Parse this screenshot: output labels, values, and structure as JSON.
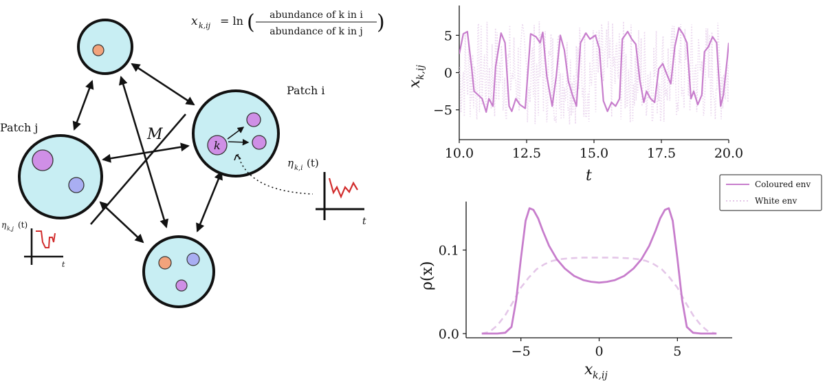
{
  "diagram": {
    "formula": {
      "lhs": "x",
      "lhs_sub": "k,ij",
      "eq_ln": "= ln",
      "numerator": "abundance of k in i",
      "denominator": "abundance of k in j"
    },
    "patch_i_label": "Patch i",
    "patch_j_label": "Patch j",
    "migration_label": "M",
    "species_label": "k",
    "eta_i_label": "η",
    "eta_i_sub": "k,i",
    "eta_i_arg": "(t)",
    "eta_j_label": "η",
    "eta_j_sub": "k,j",
    "eta_j_arg": "(t)",
    "t_label": "t",
    "colors": {
      "patch_fill": "#c8eef3",
      "species_purple": "#cf8fe6",
      "species_blue": "#a9aef2",
      "species_orange": "#f2a37c",
      "noise_red": "#d12b2b"
    }
  },
  "chart_data": [
    {
      "type": "line",
      "title": "",
      "xlabel": "t",
      "ylabel": "x",
      "ylabel_sub": "k,ij",
      "xlim": [
        10.0,
        20.0
      ],
      "ylim": [
        -9,
        9
      ],
      "xticks": [
        "10.0",
        "12.5",
        "15.0",
        "17.5",
        "20.0"
      ],
      "yticks": [
        "5",
        "0",
        "−5"
      ],
      "series": [
        {
          "name": "Coloured env",
          "color": "#c77dcc",
          "x": [
            10.0,
            10.15,
            10.3,
            10.45,
            10.55,
            10.7,
            10.85,
            11.0,
            11.1,
            11.25,
            11.35,
            11.55,
            11.7,
            11.85,
            11.95,
            12.1,
            12.25,
            12.45,
            12.65,
            12.85,
            13.0,
            13.1,
            13.25,
            13.45,
            13.6,
            13.75,
            13.9,
            14.05,
            14.2,
            14.35,
            14.5,
            14.7,
            14.85,
            15.05,
            15.2,
            15.35,
            15.5,
            15.65,
            15.8,
            15.95,
            16.05,
            16.25,
            16.4,
            16.55,
            16.7,
            16.85,
            16.95,
            17.1,
            17.25,
            17.4,
            17.55,
            17.7,
            17.85,
            18.0,
            18.15,
            18.3,
            18.45,
            18.6,
            18.7,
            18.85,
            19.0,
            19.1,
            19.25,
            19.4,
            19.55,
            19.7,
            19.8,
            19.95,
            20.0
          ],
          "values": [
            2.5,
            5.2,
            5.5,
            1.0,
            -2.5,
            -3.0,
            -3.5,
            -5.3,
            -3.5,
            -4.5,
            0.8,
            5.3,
            4.0,
            -4.5,
            -5.2,
            -3.5,
            -4.3,
            -4.8,
            5.2,
            4.8,
            4.0,
            5.4,
            -0.5,
            -4.5,
            -0.5,
            5.0,
            3.0,
            -1.2,
            -3.0,
            -4.5,
            4.0,
            5.3,
            4.5,
            5.0,
            3.2,
            -3.8,
            -5.2,
            -4.0,
            -4.5,
            -3.5,
            4.5,
            5.5,
            4.5,
            3.8,
            -1.0,
            -4.0,
            -2.5,
            -3.5,
            -4.0,
            0.5,
            1.2,
            -0.2,
            -1.5,
            3.5,
            6.0,
            5.2,
            4.0,
            -3.5,
            -2.5,
            -4.3,
            -3.0,
            2.8,
            3.5,
            4.8,
            4.0,
            -4.5,
            -3.0,
            2.0,
            4.0
          ]
        },
        {
          "name": "White env",
          "color": "#ead6ee",
          "noise_amplitude": 7
        }
      ]
    },
    {
      "type": "line",
      "title": "",
      "xlabel": "x",
      "xlabel_sub": "k,ij",
      "ylabel": "ρ(x)",
      "xlim": [
        -8.5,
        8.5
      ],
      "ylim": [
        -0.005,
        0.158
      ],
      "xticks": [
        "−5",
        "0",
        "5"
      ],
      "yticks": [
        "0.0",
        "0.1"
      ],
      "legend_position": "top-right",
      "series": [
        {
          "name": "Coloured env",
          "color": "#c77dcc",
          "x": [
            -7.5,
            -6.5,
            -6.0,
            -5.6,
            -5.3,
            -5.0,
            -4.7,
            -4.45,
            -4.2,
            -3.9,
            -3.6,
            -3.2,
            -2.7,
            -2.2,
            -1.6,
            -1.0,
            -0.5,
            0,
            0.5,
            1.0,
            1.6,
            2.2,
            2.7,
            3.2,
            3.6,
            3.9,
            4.2,
            4.45,
            4.7,
            5.0,
            5.3,
            5.6,
            6.0,
            6.5,
            7.5
          ],
          "values": [
            0.0,
            0.0,
            0.001,
            0.008,
            0.04,
            0.09,
            0.135,
            0.15,
            0.148,
            0.138,
            0.123,
            0.105,
            0.089,
            0.078,
            0.069,
            0.064,
            0.062,
            0.061,
            0.062,
            0.064,
            0.069,
            0.078,
            0.089,
            0.105,
            0.123,
            0.138,
            0.148,
            0.15,
            0.135,
            0.09,
            0.04,
            0.008,
            0.001,
            0.0,
            0.0
          ]
        },
        {
          "name": "White env",
          "color": "#e4c6e8",
          "x": [
            -7.5,
            -7.0,
            -6.5,
            -6.0,
            -5.5,
            -5.0,
            -4.5,
            -4.0,
            -3.5,
            -3.0,
            -2.5,
            -2.0,
            -1.0,
            0,
            1.0,
            2.0,
            2.5,
            3.0,
            3.5,
            4.0,
            4.5,
            5.0,
            5.5,
            6.0,
            6.5,
            7.0,
            7.5
          ],
          "values": [
            0.0,
            0.002,
            0.01,
            0.022,
            0.038,
            0.055,
            0.067,
            0.077,
            0.083,
            0.087,
            0.089,
            0.09,
            0.091,
            0.091,
            0.091,
            0.09,
            0.089,
            0.087,
            0.083,
            0.077,
            0.067,
            0.055,
            0.038,
            0.022,
            0.01,
            0.002,
            0.0
          ]
        }
      ]
    }
  ]
}
